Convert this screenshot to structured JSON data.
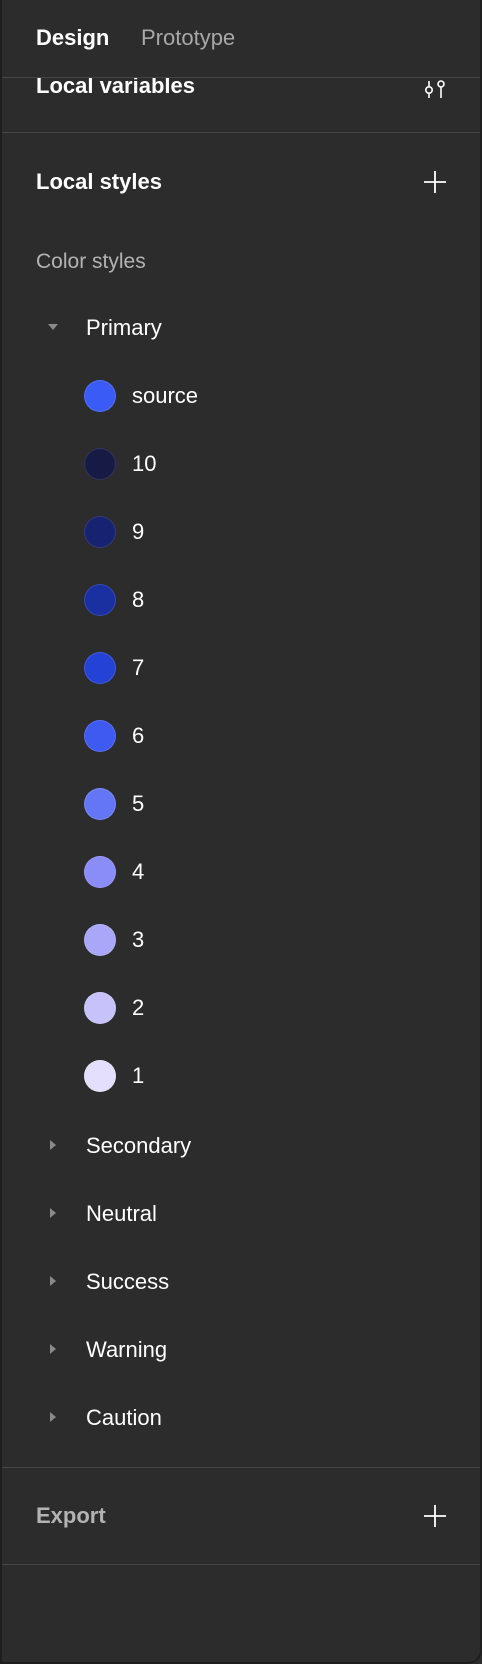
{
  "tabs": {
    "design": "Design",
    "prototype": "Prototype"
  },
  "local_variables": {
    "label": "Local variables",
    "icon": "variables-icon"
  },
  "local_styles": {
    "label": "Local styles",
    "add_icon": "plus-icon",
    "color_styles_heading": "Color styles",
    "primary": {
      "label": "Primary",
      "expanded": true,
      "styles": [
        {
          "name": "source",
          "color": "#3a5bf5"
        },
        {
          "name": "10",
          "color": "#161a45"
        },
        {
          "name": "9",
          "color": "#172270"
        },
        {
          "name": "8",
          "color": "#1a30a0"
        },
        {
          "name": "7",
          "color": "#2443d6"
        },
        {
          "name": "6",
          "color": "#3e5af0"
        },
        {
          "name": "5",
          "color": "#6476f6"
        },
        {
          "name": "4",
          "color": "#8a8cf7"
        },
        {
          "name": "3",
          "color": "#aaa7f8"
        },
        {
          "name": "2",
          "color": "#c7c2fa"
        },
        {
          "name": "1",
          "color": "#e3dffc"
        }
      ]
    },
    "collapsed_groups": [
      "Secondary",
      "Neutral",
      "Success",
      "Warning",
      "Caution"
    ]
  },
  "export": {
    "label": "Export",
    "add_icon": "plus-icon"
  }
}
